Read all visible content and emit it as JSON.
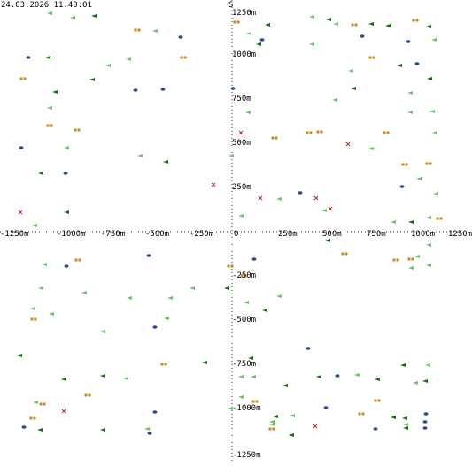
{
  "header": {
    "timestamp": "24.03.2026 11:40:01"
  },
  "compass": {
    "south_label": "S"
  },
  "axis": {
    "range_m": [
      -1250,
      1250
    ],
    "tick_step_m": 250,
    "x_ticks": [
      "-1250m",
      "-1000m",
      "-750m",
      "-500m",
      "-250m",
      "0",
      "250m",
      "500m",
      "750m",
      "1000m",
      "1250m"
    ],
    "y_ticks": [
      "1250m",
      "1000m",
      "750m",
      "500m",
      "250m",
      "-250m",
      "-500m",
      "-750m",
      "-1000m",
      "-1250m"
    ]
  },
  "legend_colors": {
    "light-green-arrow": "#6cc46c",
    "dark-green-arrow": "#127012",
    "blue-blip": "#2c4a9a",
    "orange-pair": "#c98a1a",
    "red-cross": "#cc2222"
  },
  "contacts": [
    {
      "type": "light",
      "x": -1030,
      "y": 1235
    },
    {
      "type": "dark",
      "x": -780,
      "y": 1220
    },
    {
      "type": "orange",
      "x": -535,
      "y": 1140
    },
    {
      "type": "light",
      "x": -435,
      "y": 1135
    },
    {
      "type": "blue",
      "x": -290,
      "y": 1100
    },
    {
      "type": "light",
      "x": -900,
      "y": 1210
    },
    {
      "type": "orange",
      "x": -275,
      "y": 985
    },
    {
      "type": "light",
      "x": -585,
      "y": 975
    },
    {
      "type": "dark",
      "x": -1040,
      "y": 985
    },
    {
      "type": "blue",
      "x": -1150,
      "y": 985
    },
    {
      "type": "light",
      "x": -700,
      "y": 940
    },
    {
      "type": "orange",
      "x": -1180,
      "y": 865
    },
    {
      "type": "dark",
      "x": -790,
      "y": 860
    },
    {
      "type": "blue",
      "x": -545,
      "y": 800
    },
    {
      "type": "blue",
      "x": -390,
      "y": 805
    },
    {
      "type": "blue",
      "x": 5,
      "y": 810
    },
    {
      "type": "dark",
      "x": -1000,
      "y": 790
    },
    {
      "type": "light",
      "x": -1030,
      "y": 700
    },
    {
      "type": "orange",
      "x": -1030,
      "y": 600
    },
    {
      "type": "orange",
      "x": -875,
      "y": 575
    },
    {
      "type": "blue",
      "x": -1190,
      "y": 475
    },
    {
      "type": "light",
      "x": -935,
      "y": 475
    },
    {
      "type": "light",
      "x": -520,
      "y": 430
    },
    {
      "type": "dark",
      "x": -375,
      "y": 395
    },
    {
      "type": "light",
      "x": -5,
      "y": 430
    },
    {
      "type": "dark",
      "x": -1080,
      "y": 330
    },
    {
      "type": "blue",
      "x": -940,
      "y": 330
    },
    {
      "type": "red",
      "x": -105,
      "y": 265
    },
    {
      "type": "red",
      "x": -1195,
      "y": 110
    },
    {
      "type": "dark",
      "x": -935,
      "y": 110
    },
    {
      "type": "light",
      "x": -1115,
      "y": 35
    },
    {
      "type": "orange",
      "x": 25,
      "y": 1185
    },
    {
      "type": "light",
      "x": 95,
      "y": 1120
    },
    {
      "type": "dark",
      "x": 200,
      "y": 1170
    },
    {
      "type": "blue",
      "x": 170,
      "y": 1085
    },
    {
      "type": "dark",
      "x": 150,
      "y": 1060
    },
    {
      "type": "light",
      "x": 450,
      "y": 1215
    },
    {
      "type": "dark",
      "x": 545,
      "y": 1200
    },
    {
      "type": "light",
      "x": 585,
      "y": 1175
    },
    {
      "type": "orange",
      "x": 690,
      "y": 1170
    },
    {
      "type": "dark",
      "x": 785,
      "y": 1175
    },
    {
      "type": "dark",
      "x": 880,
      "y": 1165
    },
    {
      "type": "orange",
      "x": 1035,
      "y": 1195
    },
    {
      "type": "dark",
      "x": 1110,
      "y": 1160
    },
    {
      "type": "blue",
      "x": 735,
      "y": 1105
    },
    {
      "type": "blue",
      "x": 995,
      "y": 1075
    },
    {
      "type": "light",
      "x": 1140,
      "y": 1085
    },
    {
      "type": "light",
      "x": 450,
      "y": 1060
    },
    {
      "type": "orange",
      "x": 790,
      "y": 985
    },
    {
      "type": "dark",
      "x": 945,
      "y": 940
    },
    {
      "type": "blue",
      "x": 1045,
      "y": 950
    },
    {
      "type": "light",
      "x": 670,
      "y": 910
    },
    {
      "type": "dark",
      "x": 1115,
      "y": 865
    },
    {
      "type": "dark",
      "x": 685,
      "y": 810
    },
    {
      "type": "light",
      "x": 1005,
      "y": 785
    },
    {
      "type": "light",
      "x": 580,
      "y": 745
    },
    {
      "type": "light",
      "x": 1005,
      "y": 675
    },
    {
      "type": "light",
      "x": 1130,
      "y": 680
    },
    {
      "type": "light",
      "x": 90,
      "y": 675
    },
    {
      "type": "red",
      "x": 50,
      "y": 560
    },
    {
      "type": "orange",
      "x": 240,
      "y": 530
    },
    {
      "type": "orange",
      "x": 435,
      "y": 560
    },
    {
      "type": "orange",
      "x": 495,
      "y": 565
    },
    {
      "type": "red",
      "x": 655,
      "y": 495
    },
    {
      "type": "orange",
      "x": 870,
      "y": 560
    },
    {
      "type": "light",
      "x": 1145,
      "y": 560
    },
    {
      "type": "light",
      "x": 785,
      "y": 470
    },
    {
      "type": "orange",
      "x": 975,
      "y": 380
    },
    {
      "type": "orange",
      "x": 1110,
      "y": 385
    },
    {
      "type": "light",
      "x": 1055,
      "y": 300
    },
    {
      "type": "blue",
      "x": 960,
      "y": 255
    },
    {
      "type": "light",
      "x": 1150,
      "y": 215
    },
    {
      "type": "blue",
      "x": 385,
      "y": 220
    },
    {
      "type": "red",
      "x": 475,
      "y": 190
    },
    {
      "type": "red",
      "x": 160,
      "y": 190
    },
    {
      "type": "light",
      "x": 265,
      "y": 185
    },
    {
      "type": "red",
      "x": 555,
      "y": 130
    },
    {
      "type": "light",
      "x": 520,
      "y": 120
    },
    {
      "type": "light",
      "x": 50,
      "y": 90
    },
    {
      "type": "light",
      "x": 1110,
      "y": 80
    },
    {
      "type": "orange",
      "x": 1170,
      "y": 75
    },
    {
      "type": "dark",
      "x": 1010,
      "y": 55
    },
    {
      "type": "light",
      "x": 910,
      "y": 55
    },
    {
      "type": "dark",
      "x": 540,
      "y": -50
    },
    {
      "type": "light",
      "x": 1110,
      "y": -75
    },
    {
      "type": "orange",
      "x": 635,
      "y": -125
    },
    {
      "type": "light",
      "x": 1045,
      "y": -140
    },
    {
      "type": "orange",
      "x": 925,
      "y": -160
    },
    {
      "type": "orange",
      "x": 1010,
      "y": -155
    },
    {
      "type": "light",
      "x": 1110,
      "y": -190
    },
    {
      "type": "light",
      "x": 1010,
      "y": -205
    },
    {
      "type": "blue",
      "x": -470,
      "y": -135
    },
    {
      "type": "orange",
      "x": -870,
      "y": -160
    },
    {
      "type": "light",
      "x": -1060,
      "y": -185
    },
    {
      "type": "blue",
      "x": -935,
      "y": -195
    },
    {
      "type": "orange",
      "x": -10,
      "y": -195
    },
    {
      "type": "blue",
      "x": 125,
      "y": -155
    },
    {
      "type": "orange",
      "x": 65,
      "y": -250
    },
    {
      "type": "light",
      "x": -1080,
      "y": -320
    },
    {
      "type": "light",
      "x": -835,
      "y": -345
    },
    {
      "type": "light",
      "x": -580,
      "y": -375
    },
    {
      "type": "light",
      "x": -350,
      "y": -375
    },
    {
      "type": "light",
      "x": -225,
      "y": -320
    },
    {
      "type": "dark",
      "x": -30,
      "y": -320
    },
    {
      "type": "light",
      "x": 265,
      "y": -365
    },
    {
      "type": "light",
      "x": 80,
      "y": -400
    },
    {
      "type": "dark",
      "x": 185,
      "y": -445
    },
    {
      "type": "light",
      "x": -1125,
      "y": -435
    },
    {
      "type": "light",
      "x": -1020,
      "y": -465
    },
    {
      "type": "orange",
      "x": -1120,
      "y": -495
    },
    {
      "type": "light",
      "x": -370,
      "y": -490
    },
    {
      "type": "blue",
      "x": -435,
      "y": -540
    },
    {
      "type": "light",
      "x": -730,
      "y": -565
    },
    {
      "type": "dark",
      "x": -1200,
      "y": -700
    },
    {
      "type": "dark",
      "x": -155,
      "y": -740
    },
    {
      "type": "orange",
      "x": -385,
      "y": -750
    },
    {
      "type": "blue",
      "x": 430,
      "y": -660
    },
    {
      "type": "dark",
      "x": 105,
      "y": -715
    },
    {
      "type": "light",
      "x": 50,
      "y": -820
    },
    {
      "type": "light",
      "x": 120,
      "y": -820
    },
    {
      "type": "dark",
      "x": -730,
      "y": -815
    },
    {
      "type": "light",
      "x": -600,
      "y": -830
    },
    {
      "type": "dark",
      "x": -950,
      "y": -835
    },
    {
      "type": "dark",
      "x": 490,
      "y": -820
    },
    {
      "type": "blue",
      "x": 595,
      "y": -815
    },
    {
      "type": "light",
      "x": 705,
      "y": -810
    },
    {
      "type": "dark",
      "x": 820,
      "y": -835
    },
    {
      "type": "dark",
      "x": 965,
      "y": -755
    },
    {
      "type": "light",
      "x": 1105,
      "y": -755
    },
    {
      "type": "dark",
      "x": 1090,
      "y": -845
    },
    {
      "type": "light",
      "x": 1035,
      "y": -855
    },
    {
      "type": "dark",
      "x": 300,
      "y": -870
    },
    {
      "type": "light",
      "x": 50,
      "y": -935
    },
    {
      "type": "orange",
      "x": 130,
      "y": -960
    },
    {
      "type": "orange",
      "x": -815,
      "y": -925
    },
    {
      "type": "light",
      "x": -1110,
      "y": -965
    },
    {
      "type": "orange",
      "x": -1070,
      "y": -975
    },
    {
      "type": "red",
      "x": -950,
      "y": -1015
    },
    {
      "type": "light",
      "x": -10,
      "y": -1000
    },
    {
      "type": "blue",
      "x": 530,
      "y": -995
    },
    {
      "type": "orange",
      "x": 820,
      "y": -955
    },
    {
      "type": "orange",
      "x": 730,
      "y": -1030
    },
    {
      "type": "blue",
      "x": -435,
      "y": -1020
    },
    {
      "type": "orange",
      "x": -1125,
      "y": -1055
    },
    {
      "type": "dark",
      "x": 245,
      "y": -1045
    },
    {
      "type": "light",
      "x": 340,
      "y": -1040
    },
    {
      "type": "light",
      "x": 225,
      "y": -1075
    },
    {
      "type": "light",
      "x": 230,
      "y": -1075
    },
    {
      "type": "dark",
      "x": 910,
      "y": -1050
    },
    {
      "type": "dark",
      "x": 975,
      "y": -1055
    },
    {
      "type": "blue",
      "x": 1095,
      "y": -1030
    },
    {
      "type": "blue",
      "x": 1090,
      "y": -1075
    },
    {
      "type": "light",
      "x": 980,
      "y": -1090
    },
    {
      "type": "light",
      "x": 225,
      "y": -1090
    },
    {
      "type": "blue",
      "x": -1175,
      "y": -1105
    },
    {
      "type": "dark",
      "x": -1085,
      "y": -1120
    },
    {
      "type": "dark",
      "x": -730,
      "y": -1120
    },
    {
      "type": "light",
      "x": -480,
      "y": -1115
    },
    {
      "type": "blue",
      "x": -465,
      "y": -1140
    },
    {
      "type": "orange",
      "x": 225,
      "y": -1115
    },
    {
      "type": "blue",
      "x": 810,
      "y": -1115
    },
    {
      "type": "dark",
      "x": 980,
      "y": -1110
    },
    {
      "type": "blue",
      "x": 1090,
      "y": -1110
    },
    {
      "type": "red",
      "x": 470,
      "y": -1100
    },
    {
      "type": "dark",
      "x": 335,
      "y": -1150
    }
  ]
}
